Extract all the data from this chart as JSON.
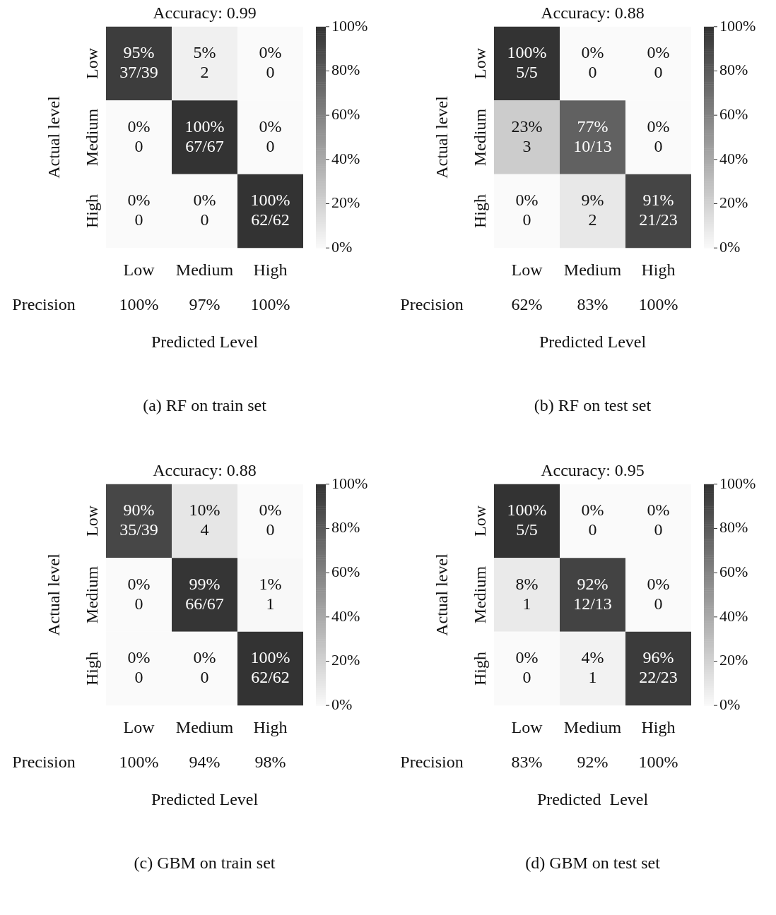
{
  "chart_data": [
    {
      "type": "heatmap",
      "title": "Accuracy: 0.99",
      "xlabel": "Predicted Level",
      "ylabel": "Actual level",
      "categories": [
        "Low",
        "Medium",
        "High"
      ],
      "y_categories": [
        "Low",
        "Medium",
        "High"
      ],
      "cells": [
        [
          95,
          5,
          0
        ],
        [
          0,
          100,
          0
        ],
        [
          0,
          0,
          100
        ]
      ],
      "cell_labels": [
        [
          "95%\n37/39",
          "5%\n2",
          "0%\n0"
        ],
        [
          "0%\n0",
          "100%\n67/67",
          "0%\n0"
        ],
        [
          "0%\n0",
          "0%\n0",
          "100%\n62/62"
        ]
      ],
      "clim": [
        0,
        100
      ],
      "cticks": [
        {
          "value": 0,
          "label": "0%"
        },
        {
          "value": 20,
          "label": "20%"
        },
        {
          "value": 40,
          "label": "40%"
        },
        {
          "value": 60,
          "label": "60%"
        },
        {
          "value": 80,
          "label": "80%"
        },
        {
          "value": 100,
          "label": "100%"
        }
      ],
      "annotations": [
        "Precision",
        "100%",
        "97%",
        "100%",
        "(a) RF on train set"
      ]
    },
    {
      "type": "heatmap",
      "title": "Accuracy: 0.88",
      "xlabel": "Predicted Level",
      "ylabel": "Actual level",
      "categories": [
        "Low",
        "Medium",
        "High"
      ],
      "y_categories": [
        "Low",
        "Medium",
        "High"
      ],
      "cells": [
        [
          100,
          0,
          0
        ],
        [
          23,
          77,
          0
        ],
        [
          0,
          9,
          91
        ]
      ],
      "cell_labels": [
        [
          "100%\n5/5",
          "0%\n0",
          "0%\n0"
        ],
        [
          "23%\n3",
          "77%\n10/13",
          "0%\n0"
        ],
        [
          "0%\n0",
          "9%\n2",
          "91%\n21/23"
        ]
      ],
      "clim": [
        0,
        100
      ],
      "cticks": [
        {
          "value": 0,
          "label": "0%"
        },
        {
          "value": 20,
          "label": "20%"
        },
        {
          "value": 40,
          "label": "40%"
        },
        {
          "value": 60,
          "label": "60%"
        },
        {
          "value": 80,
          "label": "80%"
        },
        {
          "value": 100,
          "label": "100%"
        }
      ],
      "annotations": [
        "Precision",
        "62%",
        "83%",
        "100%",
        "(b) RF on test set"
      ]
    },
    {
      "type": "heatmap",
      "title": "Accuracy: 0.88",
      "xlabel": "Predicted Level",
      "ylabel": "Actual level",
      "categories": [
        "Low",
        "Medium",
        "High"
      ],
      "y_categories": [
        "Low",
        "Medium",
        "High"
      ],
      "cells": [
        [
          90,
          10,
          0
        ],
        [
          0,
          99,
          1
        ],
        [
          0,
          0,
          100
        ]
      ],
      "cell_labels": [
        [
          "90%\n35/39",
          "10%\n4",
          "0%\n0"
        ],
        [
          "0%\n0",
          "99%\n66/67",
          "1%\n1"
        ],
        [
          "0%\n0",
          "0%\n0",
          "100%\n62/62"
        ]
      ],
      "clim": [
        0,
        100
      ],
      "cticks": [
        {
          "value": 0,
          "label": "0%"
        },
        {
          "value": 20,
          "label": "20%"
        },
        {
          "value": 40,
          "label": "40%"
        },
        {
          "value": 60,
          "label": "60%"
        },
        {
          "value": 80,
          "label": "80%"
        },
        {
          "value": 100,
          "label": "100%"
        }
      ],
      "annotations": [
        "Precision",
        "100%",
        "94%",
        "98%",
        "(c) GBM on train set"
      ]
    },
    {
      "type": "heatmap",
      "title": "Accuracy: 0.95",
      "xlabel": "Predicted  Level",
      "ylabel": "Actual level",
      "categories": [
        "Low",
        "Medium",
        "High"
      ],
      "y_categories": [
        "Low",
        "Medium",
        "High"
      ],
      "cells": [
        [
          100,
          0,
          0
        ],
        [
          8,
          92,
          0
        ],
        [
          0,
          4,
          96
        ]
      ],
      "cell_labels": [
        [
          "100%\n5/5",
          "0%\n0",
          "0%\n0"
        ],
        [
          "8%\n1",
          "92%\n12/13",
          "0%\n0"
        ],
        [
          "0%\n0",
          "4%\n1",
          "96%\n22/23"
        ]
      ],
      "clim": [
        0,
        100
      ],
      "cticks": [
        {
          "value": 0,
          "label": "0%"
        },
        {
          "value": 20,
          "label": "20%"
        },
        {
          "value": 40,
          "label": "40%"
        },
        {
          "value": 60,
          "label": "60%"
        },
        {
          "value": 80,
          "label": "80%"
        },
        {
          "value": 100,
          "label": "100%"
        }
      ],
      "annotations": [
        "Precision",
        "83%",
        "92%",
        "100%",
        "(d) GBM on test set"
      ]
    }
  ]
}
